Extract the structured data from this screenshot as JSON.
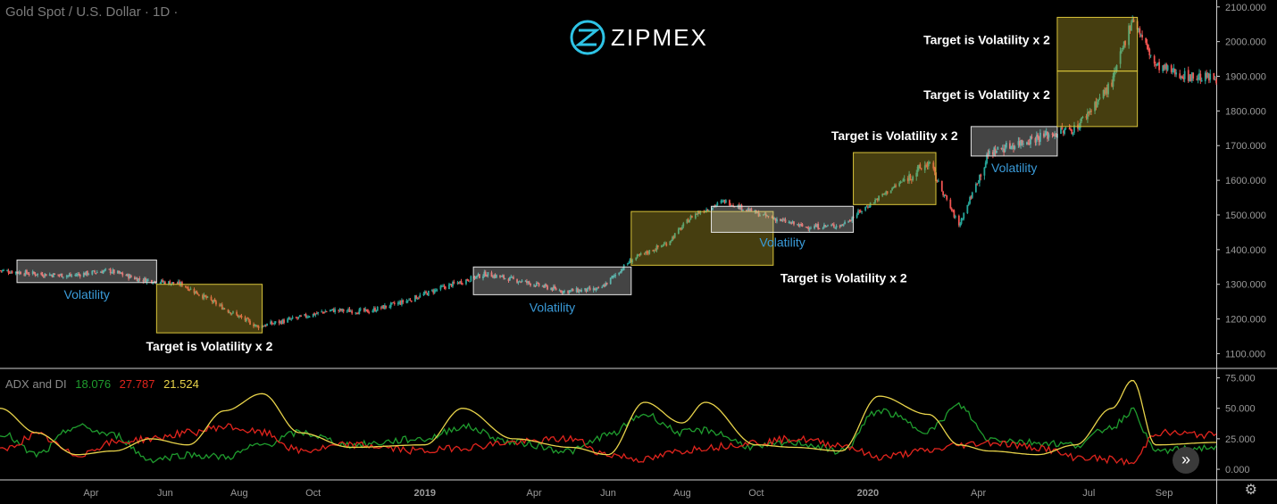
{
  "header": {
    "symbol_title": "Gold Spot / U.S. Dollar · 1D ·"
  },
  "logo": {
    "text": "ZIPMEX",
    "icon": "zipmex-logo-icon"
  },
  "indicator": {
    "name": "ADX and DI",
    "values": [
      "18.076",
      "27.787",
      "21.524"
    ],
    "colors": [
      "#1f9c2e",
      "#e0241d",
      "#e8d34a"
    ]
  },
  "colors": {
    "up": "#26a69a",
    "down": "#ef5350",
    "target_box": "#b8a32a",
    "volatility_box": "#cfcfcf",
    "volatility_text": "#3a9bd9",
    "annotation_text": "#ffffff",
    "axis_text": "#9a9a9a"
  },
  "chart_data": [
    {
      "type": "candlestick",
      "title": "Gold Spot / U.S. Dollar · 1D ·",
      "ylim": [
        1060,
        2120
      ],
      "y_ticks": [
        "2100.000",
        "2000.000",
        "1900.000",
        "1800.000",
        "1700.000",
        "1600.000",
        "1500.000",
        "1400.000",
        "1300.000",
        "1200.000",
        "1100.000"
      ],
      "x_ticks": [
        "Apr",
        "Jun",
        "Aug",
        "Oct",
        "2019",
        "Apr",
        "Jun",
        "Aug",
        "Oct",
        "2020",
        "Apr",
        "Jul",
        "Sep"
      ],
      "x_tick_dates": [
        "2018-04-01",
        "2018-06-01",
        "2018-08-01",
        "2018-10-01",
        "2019-01-01",
        "2019-04-01",
        "2019-06-01",
        "2019-08-01",
        "2019-10-01",
        "2020-01-01",
        "2020-04-01",
        "2020-07-01",
        "2020-09-01"
      ],
      "x_range": [
        "2018-01-16",
        "2020-10-14"
      ],
      "price_path": [
        [
          "2018-01-16",
          1340
        ],
        [
          "2018-02-15",
          1330
        ],
        [
          "2018-03-15",
          1325
        ],
        [
          "2018-04-15",
          1340
        ],
        [
          "2018-05-10",
          1315
        ],
        [
          "2018-06-15",
          1300
        ],
        [
          "2018-07-20",
          1230
        ],
        [
          "2018-08-16",
          1178
        ],
        [
          "2018-09-15",
          1200
        ],
        [
          "2018-10-15",
          1225
        ],
        [
          "2018-11-15",
          1222
        ],
        [
          "2018-12-15",
          1250
        ],
        [
          "2019-01-15",
          1290
        ],
        [
          "2019-02-20",
          1330
        ],
        [
          "2019-03-20",
          1310
        ],
        [
          "2019-04-25",
          1280
        ],
        [
          "2019-05-25",
          1285
        ],
        [
          "2019-06-20",
          1370
        ],
        [
          "2019-07-20",
          1420
        ],
        [
          "2019-08-10",
          1500
        ],
        [
          "2019-09-05",
          1540
        ],
        [
          "2019-10-05",
          1500
        ],
        [
          "2019-11-10",
          1465
        ],
        [
          "2019-12-10",
          1470
        ],
        [
          "2020-01-10",
          1550
        ],
        [
          "2020-02-20",
          1650
        ],
        [
          "2020-03-16",
          1470
        ],
        [
          "2020-04-10",
          1680
        ],
        [
          "2020-05-15",
          1720
        ],
        [
          "2020-06-20",
          1750
        ],
        [
          "2020-07-20",
          1880
        ],
        [
          "2020-08-06",
          2070
        ],
        [
          "2020-08-25",
          1930
        ],
        [
          "2020-09-20",
          1900
        ],
        [
          "2020-10-14",
          1895
        ]
      ],
      "annotations": [
        {
          "kind": "volatility",
          "label": "Volatility",
          "x0": "2018-01-30",
          "x1": "2018-05-25",
          "y0": 1305,
          "y1": 1370
        },
        {
          "kind": "target",
          "label": "Target is Volatility x 2",
          "x0": "2018-05-25",
          "x1": "2018-08-20",
          "y0": 1160,
          "y1": 1300
        },
        {
          "kind": "volatility",
          "label": "Volatility",
          "x0": "2019-02-10",
          "x1": "2019-06-20",
          "y0": 1270,
          "y1": 1350
        },
        {
          "kind": "target",
          "label": "Target is Volatility x 2",
          "x0": "2019-06-20",
          "x1": "2019-10-15",
          "y0": 1355,
          "y1": 1510
        },
        {
          "kind": "volatility",
          "label": "Volatility",
          "x0": "2019-08-25",
          "x1": "2019-12-20",
          "y0": 1450,
          "y1": 1525
        },
        {
          "kind": "target",
          "label": "Target is Volatility x 2",
          "x0": "2019-12-20",
          "x1": "2020-02-26",
          "y0": 1530,
          "y1": 1680
        },
        {
          "kind": "volatility",
          "label": "Volatility",
          "x0": "2020-03-26",
          "x1": "2020-06-05",
          "y0": 1670,
          "y1": 1755
        },
        {
          "kind": "target",
          "label": "Target is Volatility x 2",
          "x0": "2020-06-05",
          "x1": "2020-08-10",
          "y0": 1755,
          "y1": 1915
        },
        {
          "kind": "target",
          "label": "Target is Volatility x 2",
          "x0": "2020-06-05",
          "x1": "2020-08-10",
          "y0": 1915,
          "y1": 2070
        }
      ]
    },
    {
      "type": "line",
      "title": "ADX and DI",
      "ylim": [
        -8,
        82
      ],
      "y_ticks": [
        "75.000",
        "50.000",
        "25.000",
        "0.000"
      ],
      "series": [
        {
          "name": "",
          "color": "#1f9c2e",
          "points": [
            [
              "2018-01-16",
              30
            ],
            [
              "2018-02-15",
              12
            ],
            [
              "2018-03-20",
              35
            ],
            [
              "2018-04-20",
              28
            ],
            [
              "2018-05-20",
              8
            ],
            [
              "2018-06-20",
              12
            ],
            [
              "2018-07-20",
              10
            ],
            [
              "2018-08-20",
              20
            ],
            [
              "2018-09-20",
              30
            ],
            [
              "2018-11-01",
              20
            ],
            [
              "2019-01-01",
              25
            ],
            [
              "2019-02-01",
              35
            ],
            [
              "2019-03-15",
              22
            ],
            [
              "2019-05-01",
              15
            ],
            [
              "2019-06-01",
              28
            ],
            [
              "2019-07-01",
              45
            ],
            [
              "2019-08-01",
              30
            ],
            [
              "2019-08-20",
              32
            ],
            [
              "2019-10-01",
              18
            ],
            [
              "2019-11-01",
              22
            ],
            [
              "2019-12-10",
              15
            ],
            [
              "2020-01-10",
              48
            ],
            [
              "2020-02-20",
              32
            ],
            [
              "2020-03-16",
              52
            ],
            [
              "2020-04-10",
              25
            ],
            [
              "2020-05-20",
              22
            ],
            [
              "2020-06-20",
              20
            ],
            [
              "2020-07-20",
              35
            ],
            [
              "2020-08-06",
              48
            ],
            [
              "2020-08-25",
              15
            ],
            [
              "2020-10-14",
              18
            ]
          ]
        },
        {
          "name": "",
          "color": "#e0241d",
          "points": [
            [
              "2018-01-16",
              15
            ],
            [
              "2018-02-15",
              28
            ],
            [
              "2018-03-20",
              12
            ],
            [
              "2018-04-20",
              22
            ],
            [
              "2018-05-20",
              25
            ],
            [
              "2018-06-20",
              30
            ],
            [
              "2018-07-20",
              35
            ],
            [
              "2018-08-20",
              30
            ],
            [
              "2018-09-20",
              15
            ],
            [
              "2018-11-01",
              20
            ],
            [
              "2019-01-01",
              15
            ],
            [
              "2019-02-01",
              18
            ],
            [
              "2019-03-15",
              22
            ],
            [
              "2019-05-01",
              25
            ],
            [
              "2019-06-01",
              12
            ],
            [
              "2019-07-01",
              8
            ],
            [
              "2019-08-01",
              15
            ],
            [
              "2019-08-20",
              18
            ],
            [
              "2019-10-01",
              22
            ],
            [
              "2019-11-01",
              25
            ],
            [
              "2019-12-10",
              20
            ],
            [
              "2020-01-10",
              10
            ],
            [
              "2020-02-20",
              15
            ],
            [
              "2020-03-16",
              20
            ],
            [
              "2020-04-10",
              22
            ],
            [
              "2020-05-20",
              18
            ],
            [
              "2020-06-20",
              10
            ],
            [
              "2020-07-20",
              8
            ],
            [
              "2020-08-06",
              5
            ],
            [
              "2020-08-25",
              30
            ],
            [
              "2020-10-14",
              28
            ]
          ]
        },
        {
          "name": "",
          "color": "#e8d34a",
          "points": [
            [
              "2018-01-16",
              50
            ],
            [
              "2018-02-15",
              30
            ],
            [
              "2018-03-20",
              12
            ],
            [
              "2018-04-20",
              15
            ],
            [
              "2018-05-20",
              25
            ],
            [
              "2018-06-20",
              20
            ],
            [
              "2018-07-20",
              48
            ],
            [
              "2018-08-20",
              62
            ],
            [
              "2018-09-20",
              30
            ],
            [
              "2018-11-01",
              18
            ],
            [
              "2019-01-01",
              20
            ],
            [
              "2019-02-01",
              50
            ],
            [
              "2019-03-15",
              25
            ],
            [
              "2019-05-01",
              18
            ],
            [
              "2019-06-01",
              12
            ],
            [
              "2019-07-01",
              55
            ],
            [
              "2019-08-01",
              38
            ],
            [
              "2019-08-20",
              55
            ],
            [
              "2019-10-01",
              20
            ],
            [
              "2019-11-01",
              18
            ],
            [
              "2019-12-10",
              15
            ],
            [
              "2020-01-10",
              60
            ],
            [
              "2020-02-20",
              45
            ],
            [
              "2020-03-16",
              20
            ],
            [
              "2020-04-10",
              15
            ],
            [
              "2020-05-20",
              12
            ],
            [
              "2020-06-20",
              20
            ],
            [
              "2020-07-20",
              50
            ],
            [
              "2020-08-06",
              73
            ],
            [
              "2020-08-25",
              20
            ],
            [
              "2020-10-14",
              22
            ]
          ]
        }
      ]
    }
  ]
}
